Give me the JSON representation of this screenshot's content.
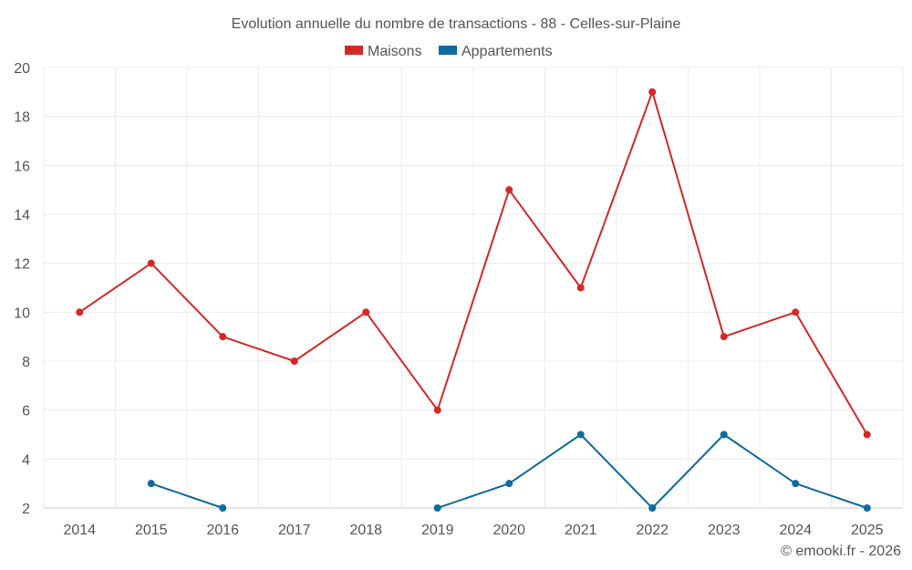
{
  "chart_data": {
    "type": "line",
    "title": "Evolution annuelle du nombre de transactions - 88 - Celles-sur-Plaine",
    "categories": [
      "2014",
      "2015",
      "2016",
      "2017",
      "2018",
      "2019",
      "2020",
      "2021",
      "2022",
      "2023",
      "2024",
      "2025"
    ],
    "series": [
      {
        "name": "Maisons",
        "color": "#d62728",
        "values": [
          10,
          12,
          9,
          8,
          10,
          6,
          15,
          11,
          19,
          9,
          10,
          5
        ]
      },
      {
        "name": "Appartements",
        "color": "#0f6aa0",
        "values": [
          null,
          3,
          2,
          null,
          null,
          2,
          3,
          5,
          2,
          5,
          3,
          2
        ]
      }
    ],
    "ylim": [
      2,
      20
    ],
    "yticks": [
      2,
      4,
      6,
      8,
      10,
      12,
      14,
      16,
      18,
      20
    ],
    "xlabel": "",
    "ylabel": "",
    "grid": true,
    "legend_position": "top-center"
  },
  "credit": "© emooki.fr - 2026"
}
